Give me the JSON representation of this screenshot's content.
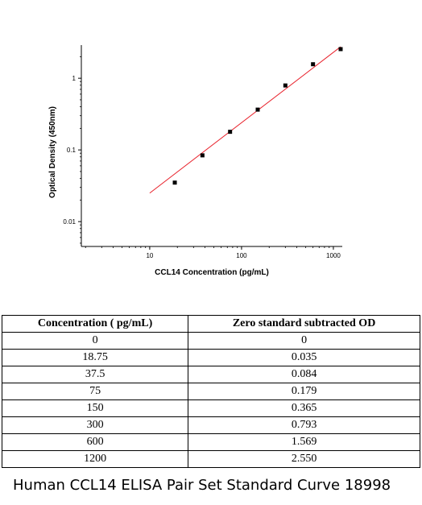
{
  "chart_data": {
    "type": "scatter",
    "xscale": "log",
    "yscale": "log",
    "xlim": [
      1.8,
      1250
    ],
    "ylim": [
      0.0045,
      2.9
    ],
    "xlabel": "CCL14 Concentration (pg/mL)",
    "ylabel": "Optical Density (450nm)",
    "x_ticks": [
      {
        "value": 10,
        "label": "10"
      },
      {
        "value": 100,
        "label": "100"
      },
      {
        "value": 1000,
        "label": "1000"
      }
    ],
    "y_ticks": [
      {
        "value": 0.01,
        "label": "0.01"
      },
      {
        "value": 0.1,
        "label": "0.1"
      },
      {
        "value": 1,
        "label": "1"
      }
    ],
    "points": {
      "x": [
        18.75,
        37.5,
        75,
        150,
        300,
        600,
        1200
      ],
      "y": [
        0.035,
        0.084,
        0.179,
        0.365,
        0.793,
        1.569,
        2.55
      ]
    },
    "fit_line": {
      "x": [
        10,
        1200
      ],
      "y": [
        0.025,
        2.75
      ],
      "color": "#e8202a"
    },
    "grid": false,
    "legend": "none"
  },
  "table": {
    "headers": [
      "Concentration ( pg/mL)",
      "Zero standard subtracted OD"
    ],
    "rows": [
      [
        "0",
        "0"
      ],
      [
        "18.75",
        "0.035"
      ],
      [
        "37.5",
        "0.084"
      ],
      [
        "75",
        "0.179"
      ],
      [
        "150",
        "0.365"
      ],
      [
        "300",
        "0.793"
      ],
      [
        "600",
        "1.569"
      ],
      [
        "1200",
        "2.550"
      ]
    ]
  },
  "caption": "Human CCL14 ELISA Pair Set Standard Curve 18998"
}
